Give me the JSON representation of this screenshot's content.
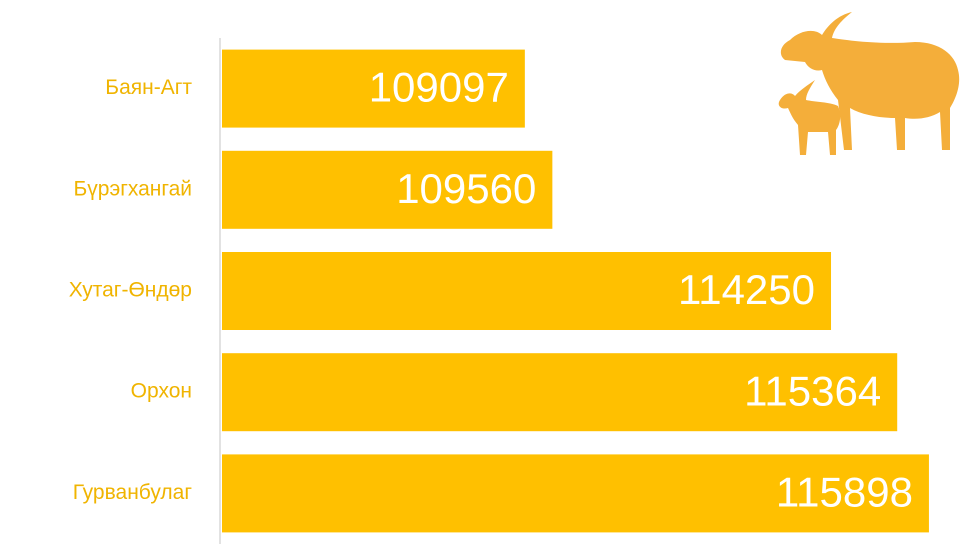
{
  "chart_data": {
    "type": "bar",
    "orientation": "horizontal",
    "categories": [
      "Баян-Агт",
      "Бүрэгхангай",
      "Хутаг-Өндөр",
      "Орхон",
      "Гурванбулаг"
    ],
    "values": [
      109097,
      109560,
      114250,
      115364,
      115898
    ],
    "color": "#ffc000",
    "label_color": "#f0b400",
    "value_label_color": "#ffffff",
    "xlim": [
      104000,
      116000
    ]
  }
}
